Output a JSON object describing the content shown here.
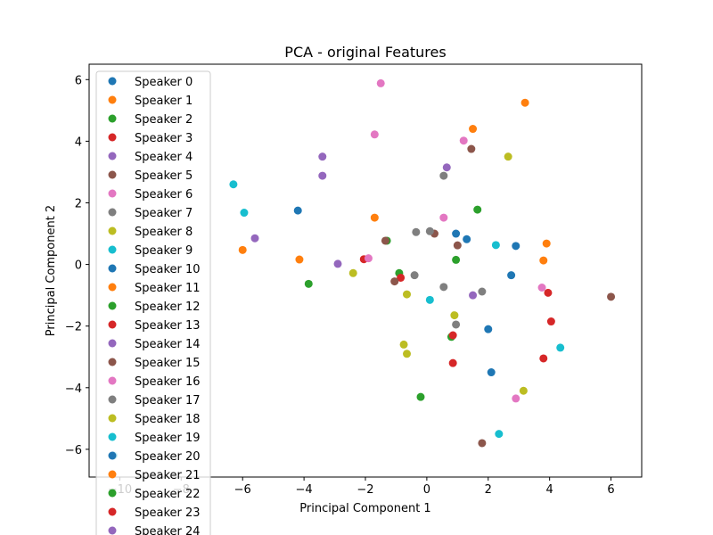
{
  "chart_data": {
    "type": "scatter",
    "title": "PCA - original Features",
    "xlabel": "Principal Component 1",
    "ylabel": "Principal Component 2",
    "xlim": [
      -11,
      7
    ],
    "ylim": [
      -6.9,
      6.5
    ],
    "xticks": [
      -10,
      -8,
      -6,
      -4,
      -2,
      0,
      2,
      4,
      6
    ],
    "yticks": [
      -6,
      -4,
      -2,
      0,
      2,
      4,
      6
    ],
    "xtick_labels": [
      "−10",
      "−8",
      "−6",
      "−4",
      "−2",
      "0",
      "2",
      "4",
      "6"
    ],
    "ytick_labels": [
      "−6",
      "−4",
      "−2",
      "0",
      "2",
      "4",
      "6"
    ],
    "grid": false,
    "legend_position": "upper-left",
    "series": [
      {
        "name": "Speaker 0",
        "color": "#1f77b4",
        "points": [
          [
            -4.2,
            1.75
          ],
          [
            2.9,
            0.6
          ],
          [
            1.3,
            0.82
          ],
          [
            0.95,
            1.0
          ],
          [
            2.75,
            -0.35
          ],
          [
            2.0,
            -2.1
          ],
          [
            2.1,
            -3.5
          ]
        ]
      },
      {
        "name": "Speaker 1",
        "color": "#ff7f0e",
        "points": [
          [
            3.2,
            5.25
          ],
          [
            1.5,
            4.4
          ],
          [
            -1.7,
            1.52
          ],
          [
            -6.0,
            0.47
          ],
          [
            -4.15,
            0.16
          ],
          [
            3.9,
            0.68
          ],
          [
            3.8,
            0.13
          ]
        ]
      },
      {
        "name": "Speaker 2",
        "color": "#2ca02c",
        "points": [
          [
            1.65,
            1.78
          ],
          [
            -1.3,
            0.77
          ],
          [
            -3.85,
            -0.63
          ],
          [
            -0.9,
            -0.28
          ],
          [
            0.95,
            0.15
          ],
          [
            0.8,
            -2.35
          ],
          [
            -0.2,
            -4.3
          ]
        ]
      },
      {
        "name": "Speaker 3",
        "color": "#d62728",
        "points": [
          [
            -2.05,
            0.17
          ],
          [
            -0.85,
            -0.43
          ],
          [
            3.95,
            -0.92
          ],
          [
            4.05,
            -1.85
          ],
          [
            0.85,
            -2.3
          ],
          [
            3.8,
            -3.05
          ],
          [
            0.85,
            -3.2
          ]
        ]
      },
      {
        "name": "Speaker 4",
        "color": "#9467bd",
        "points": [
          [
            -3.4,
            3.5
          ],
          [
            -3.4,
            2.88
          ],
          [
            0.65,
            3.15
          ],
          [
            -5.6,
            0.85
          ],
          [
            -2.9,
            0.02
          ],
          [
            1.5,
            -1.0
          ]
        ]
      },
      {
        "name": "Speaker 5",
        "color": "#8c564b",
        "points": [
          [
            1.45,
            3.75
          ],
          [
            0.25,
            1.0
          ],
          [
            1.0,
            0.62
          ],
          [
            -1.35,
            0.77
          ],
          [
            -1.05,
            -0.55
          ],
          [
            6.0,
            -1.05
          ],
          [
            1.8,
            -5.8
          ]
        ]
      },
      {
        "name": "Speaker 6",
        "color": "#e377c2",
        "points": [
          [
            -1.5,
            5.88
          ],
          [
            -1.7,
            4.22
          ],
          [
            1.2,
            4.02
          ],
          [
            0.55,
            1.52
          ],
          [
            -1.9,
            0.2
          ],
          [
            3.75,
            -0.75
          ],
          [
            2.9,
            -4.35
          ]
        ]
      },
      {
        "name": "Speaker 7",
        "color": "#7f7f7f",
        "points": [
          [
            0.55,
            2.88
          ],
          [
            -0.35,
            1.05
          ],
          [
            0.1,
            1.08
          ],
          [
            -0.4,
            -0.35
          ],
          [
            0.55,
            -0.73
          ],
          [
            1.8,
            -0.88
          ],
          [
            0.95,
            -1.95
          ]
        ]
      },
      {
        "name": "Speaker 8",
        "color": "#bcbd22",
        "points": [
          [
            2.65,
            3.5
          ],
          [
            -2.4,
            -0.28
          ],
          [
            -0.65,
            -0.97
          ],
          [
            0.9,
            -1.65
          ],
          [
            -0.75,
            -2.6
          ],
          [
            -0.65,
            -2.9
          ],
          [
            3.15,
            -4.1
          ]
        ]
      },
      {
        "name": "Speaker 9",
        "color": "#17becf",
        "points": [
          [
            -6.3,
            2.6
          ],
          [
            -5.95,
            1.68
          ],
          [
            2.25,
            0.63
          ],
          [
            0.1,
            -1.15
          ],
          [
            4.35,
            -2.7
          ],
          [
            2.35,
            -5.5
          ],
          [
            -10.2,
            -6.2
          ]
        ]
      }
    ]
  },
  "legend": [
    {
      "label": "Speaker 0",
      "color": "#1f77b4"
    },
    {
      "label": "Speaker 1",
      "color": "#ff7f0e"
    },
    {
      "label": "Speaker 2",
      "color": "#2ca02c"
    },
    {
      "label": "Speaker 3",
      "color": "#d62728"
    },
    {
      "label": "Speaker 4",
      "color": "#9467bd"
    },
    {
      "label": "Speaker 5",
      "color": "#8c564b"
    },
    {
      "label": "Speaker 6",
      "color": "#e377c2"
    },
    {
      "label": "Speaker 7",
      "color": "#7f7f7f"
    },
    {
      "label": "Speaker 8",
      "color": "#bcbd22"
    },
    {
      "label": "Speaker 9",
      "color": "#17becf"
    },
    {
      "label": "Speaker 10",
      "color": "#1f77b4"
    },
    {
      "label": "Speaker 11",
      "color": "#ff7f0e"
    },
    {
      "label": "Speaker 12",
      "color": "#2ca02c"
    },
    {
      "label": "Speaker 13",
      "color": "#d62728"
    },
    {
      "label": "Speaker 14",
      "color": "#9467bd"
    },
    {
      "label": "Speaker 15",
      "color": "#8c564b"
    },
    {
      "label": "Speaker 16",
      "color": "#e377c2"
    },
    {
      "label": "Speaker 17",
      "color": "#7f7f7f"
    },
    {
      "label": "Speaker 18",
      "color": "#bcbd22"
    },
    {
      "label": "Speaker 19",
      "color": "#17becf"
    },
    {
      "label": "Speaker 20",
      "color": "#1f77b4"
    },
    {
      "label": "Speaker 21",
      "color": "#ff7f0e"
    },
    {
      "label": "Speaker 22",
      "color": "#2ca02c"
    },
    {
      "label": "Speaker 23",
      "color": "#d62728"
    },
    {
      "label": "Speaker 24",
      "color": "#9467bd"
    }
  ]
}
